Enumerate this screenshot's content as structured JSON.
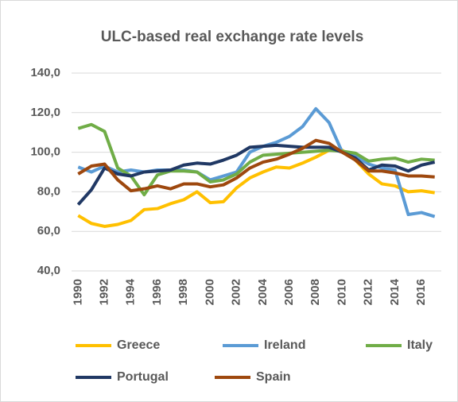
{
  "chart_data": {
    "type": "line",
    "title": "ULC-based real exchange rate levels",
    "categories": [
      "1990",
      null,
      "1992",
      null,
      "1994",
      null,
      "1996",
      null,
      "1998",
      null,
      "2000",
      null,
      "2002",
      null,
      "2004",
      null,
      "2006",
      null,
      "2008",
      null,
      "2010",
      null,
      "2012",
      null,
      "2014",
      null,
      "2016",
      null
    ],
    "series": [
      {
        "name": "Greece",
        "color": "#ffc000",
        "values": [
          68,
          64,
          62.5,
          63.5,
          65.5,
          71,
          71.5,
          74,
          76,
          80,
          74.5,
          75,
          82,
          87,
          90,
          92.5,
          92,
          94.5,
          97.5,
          101,
          101,
          96,
          89,
          84,
          83,
          80,
          80.5,
          79.5
        ]
      },
      {
        "name": "Ireland",
        "color": "#5b9bd5",
        "values": [
          92.5,
          90,
          93,
          90,
          91,
          90,
          91,
          91,
          91,
          90,
          86,
          88,
          90,
          100,
          103,
          105,
          108,
          113,
          122,
          115,
          100,
          98,
          94,
          92,
          91,
          68.5,
          69.5,
          67.5
        ]
      },
      {
        "name": "Italy",
        "color": "#70ad47",
        "values": [
          112,
          114,
          110.5,
          92,
          88,
          78.5,
          88.5,
          90.5,
          90.5,
          90,
          85,
          86,
          89,
          95,
          98.5,
          99,
          99.5,
          100,
          100.5,
          101,
          100.5,
          99.5,
          95.5,
          96.5,
          97,
          95,
          96.5,
          96
        ]
      },
      {
        "name": "Portugal",
        "color": "#203864",
        "values": [
          73.5,
          81,
          92,
          89,
          88,
          90,
          90.5,
          91,
          93.5,
          94.5,
          94,
          96,
          98.5,
          102.5,
          103,
          103.5,
          103,
          102.5,
          102.5,
          102.5,
          100,
          97,
          91,
          93.5,
          93,
          90.5,
          93.5,
          95
        ]
      },
      {
        "name": "Spain",
        "color": "#9e480e",
        "values": [
          89,
          93,
          94,
          86,
          80.5,
          81.5,
          83,
          81.5,
          84,
          84,
          82.5,
          83.5,
          87,
          92,
          95,
          96.5,
          99,
          102,
          106,
          104.5,
          100,
          96,
          90.5,
          90.5,
          89.5,
          88,
          88,
          87.5
        ]
      }
    ],
    "ylim": [
      40,
      140
    ],
    "yticks": [
      {
        "value": 40,
        "label": "40,0"
      },
      {
        "value": 60,
        "label": "60,0"
      },
      {
        "value": 80,
        "label": "80,0"
      },
      {
        "value": 100,
        "label": "100,0"
      },
      {
        "value": 120,
        "label": "120,0"
      },
      {
        "value": 140,
        "label": "140,0"
      }
    ],
    "grid": true
  }
}
